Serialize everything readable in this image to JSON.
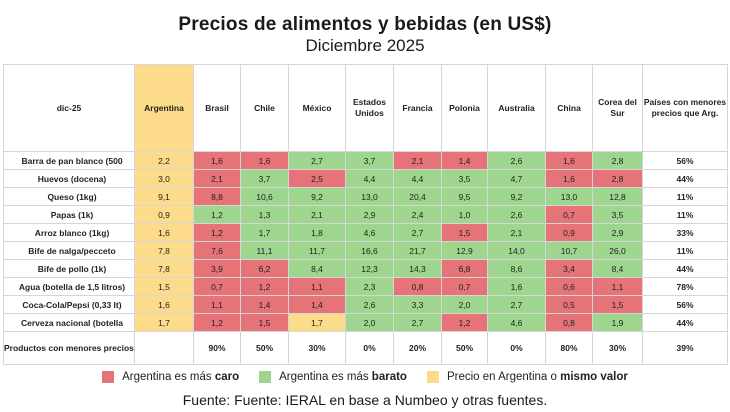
{
  "header": {
    "title": "Precios de alimentos y bebidas (en US$)",
    "subtitle": "Diciembre 2025"
  },
  "table": {
    "corner": "dic-25",
    "columns": [
      "Argentina",
      "Brasil",
      "Chile",
      "México",
      "Estados Unidos",
      "Francia",
      "Polonia",
      "Australia",
      "China",
      "Corea del Sur"
    ],
    "last_column": "Países con menores precios que Arg.",
    "rows": [
      {
        "label": "Barra de pan blanco (500",
        "values": [
          "2,2",
          "1,6",
          "1,6",
          "2,7",
          "3,7",
          "2,1",
          "1,4",
          "2,6",
          "1,6",
          "2,8"
        ],
        "colors": [
          "yellow",
          "red",
          "red",
          "green",
          "green",
          "red",
          "red",
          "green",
          "red",
          "green"
        ],
        "pct": "56%"
      },
      {
        "label": "Huevos (docena)",
        "values": [
          "3,0",
          "2,1",
          "3,7",
          "2,5",
          "4,4",
          "4,4",
          "3,5",
          "4,7",
          "1,6",
          "2,8"
        ],
        "colors": [
          "yellow",
          "red",
          "green",
          "red",
          "green",
          "green",
          "green",
          "green",
          "red",
          "red"
        ],
        "pct": "44%"
      },
      {
        "label": "Queso (1kg)",
        "values": [
          "9,1",
          "8,8",
          "10,6",
          "9,2",
          "13,0",
          "20,4",
          "9,5",
          "9,2",
          "13,0",
          "12,8"
        ],
        "colors": [
          "yellow",
          "red",
          "green",
          "green",
          "green",
          "green",
          "green",
          "green",
          "green",
          "green"
        ],
        "pct": "11%"
      },
      {
        "label": "Papas (1k)",
        "values": [
          "0,9",
          "1,2",
          "1,3",
          "2,1",
          "2,9",
          "2,4",
          "1,0",
          "2,6",
          "0,7",
          "3,5"
        ],
        "colors": [
          "yellow",
          "green",
          "green",
          "green",
          "green",
          "green",
          "green",
          "green",
          "red",
          "green"
        ],
        "pct": "11%"
      },
      {
        "label": "Arroz blanco (1kg)",
        "values": [
          "1,6",
          "1,2",
          "1,7",
          "1,8",
          "4,6",
          "2,7",
          "1,5",
          "2,1",
          "0,9",
          "2,9"
        ],
        "colors": [
          "yellow",
          "red",
          "green",
          "green",
          "green",
          "green",
          "red",
          "green",
          "red",
          "green"
        ],
        "pct": "33%"
      },
      {
        "label": "Bife de nalga/pecceto",
        "values": [
          "7,8",
          "7,6",
          "11,1",
          "11,7",
          "16,6",
          "21,7",
          "12,9",
          "14,0",
          "10,7",
          "26,0"
        ],
        "colors": [
          "yellow",
          "red",
          "green",
          "green",
          "green",
          "green",
          "green",
          "green",
          "green",
          "green"
        ],
        "pct": "11%"
      },
      {
        "label": "Bife de pollo (1k)",
        "values": [
          "7,8",
          "3,9",
          "6,2",
          "8,4",
          "12,3",
          "14,3",
          "6,8",
          "8,6",
          "3,4",
          "8,4"
        ],
        "colors": [
          "yellow",
          "red",
          "red",
          "green",
          "green",
          "green",
          "red",
          "green",
          "red",
          "green"
        ],
        "pct": "44%"
      },
      {
        "label": "Agua (botella de 1,5 litros)",
        "values": [
          "1,5",
          "0,7",
          "1,2",
          "1,1",
          "2,3",
          "0,8",
          "0,7",
          "1,6",
          "0,6",
          "1,1"
        ],
        "colors": [
          "yellow",
          "red",
          "red",
          "red",
          "green",
          "red",
          "red",
          "green",
          "red",
          "red"
        ],
        "pct": "78%"
      },
      {
        "label": "Coca-Cola/Pepsi (0,33 lt)",
        "values": [
          "1,6",
          "1,1",
          "1,4",
          "1,4",
          "2,6",
          "3,3",
          "2,0",
          "2,7",
          "0,5",
          "1,5"
        ],
        "colors": [
          "yellow",
          "red",
          "red",
          "red",
          "green",
          "green",
          "green",
          "green",
          "red",
          "red"
        ],
        "pct": "56%"
      },
      {
        "label": "Cerveza nacional (botella",
        "values": [
          "1,7",
          "1,2",
          "1,5",
          "1,7",
          "2,0",
          "2,7",
          "1,2",
          "4,6",
          "0,8",
          "1,9"
        ],
        "colors": [
          "yellow",
          "red",
          "red",
          "yellow",
          "green",
          "green",
          "red",
          "green",
          "red",
          "green"
        ],
        "pct": "44%"
      }
    ],
    "footer": {
      "label": "Productos con menores precios que Arg.",
      "values": [
        "",
        "90%",
        "50%",
        "30%",
        "0%",
        "20%",
        "50%",
        "0%",
        "80%",
        "30%"
      ],
      "pct": "39%"
    }
  },
  "legend": [
    {
      "color": "red",
      "text": "Argentina es más ",
      "bold": "caro"
    },
    {
      "color": "green",
      "text": "Argentina es más ",
      "bold": "barato"
    },
    {
      "color": "yellow",
      "text": "Precio en Argentina o ",
      "bold": "mismo valor"
    }
  ],
  "colors": {
    "red": "#e57378",
    "green": "#9fd68f",
    "yellow": "#fcdc8a"
  },
  "source": "Fuente: Fuente: IERAL en base a Numbeo y otras fuentes."
}
